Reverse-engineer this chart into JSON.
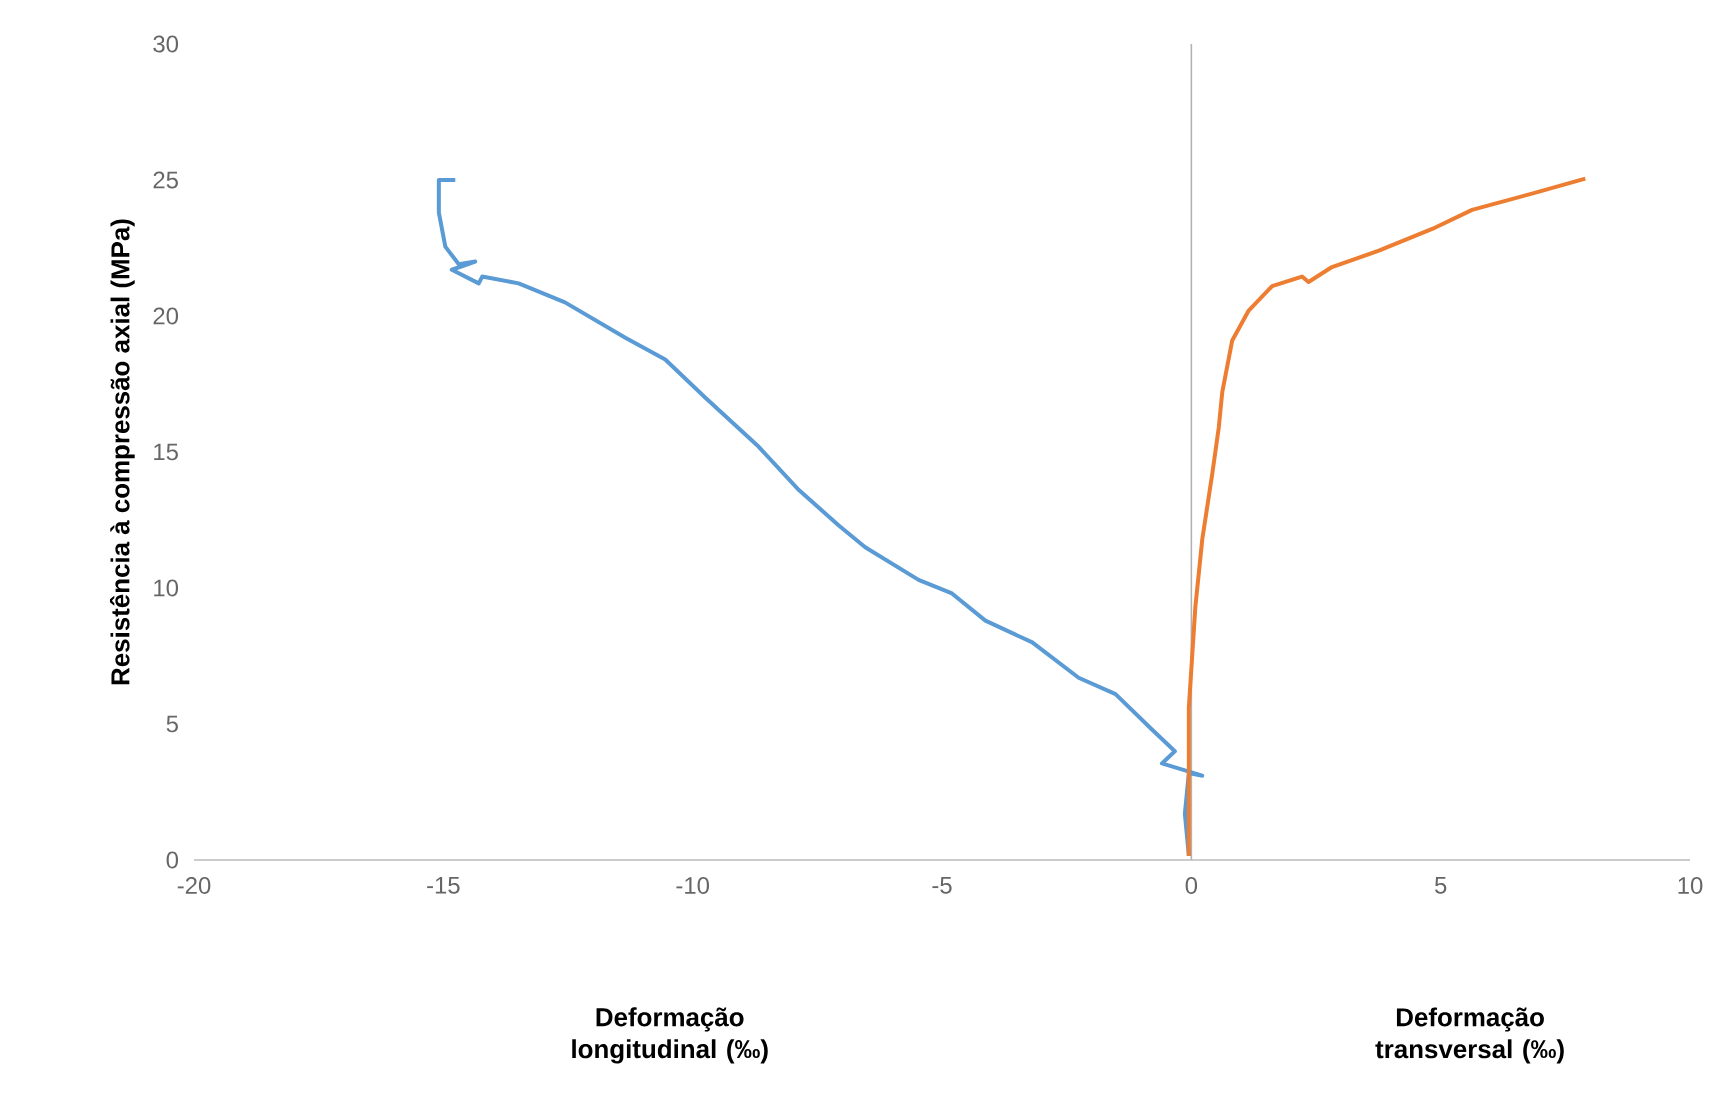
{
  "chart_data": {
    "type": "line",
    "ylabel": "Resistência à compressão axial (MPa)",
    "xlabel": "Deformação longitudinal (‰)",
    "annotations": [
      "Deformação transversal (‰)"
    ],
    "xlim": [
      -20,
      10
    ],
    "ylim": [
      0,
      30
    ],
    "xticks": [
      -20,
      -15,
      -10,
      -5,
      0,
      5,
      10
    ],
    "yticks": [
      0,
      5,
      10,
      15,
      20,
      25,
      30
    ],
    "series": [
      {
        "color": "#5b9bd5",
        "x": [
          -0.05,
          -0.13,
          -0.05,
          0.22,
          -0.59,
          -0.33,
          -0.79,
          -1.52,
          -2.26,
          -3.19,
          -4.13,
          -4.8,
          -5.47,
          -6.54,
          -7.07,
          -7.87,
          -8.68,
          -9.75,
          -10.55,
          -11.35,
          -12.56,
          -13.49,
          -14.22,
          -14.29,
          -14.83,
          -14.36,
          -14.69,
          -14.96,
          -15.09,
          -15.09,
          -14.76
        ],
        "values": [
          0.15,
          1.7,
          3.2,
          3.1,
          3.55,
          4.0,
          4.8,
          6.1,
          6.7,
          8.0,
          8.8,
          9.8,
          10.3,
          11.5,
          12.3,
          13.6,
          15.2,
          17.0,
          18.4,
          19.2,
          20.5,
          21.2,
          21.45,
          21.2,
          21.7,
          22.0,
          21.9,
          22.55,
          23.8,
          25.0,
          25.0
        ]
      },
      {
        "color": "#ed7d31",
        "x": [
          -0.05,
          -0.05,
          0.08,
          0.22,
          0.42,
          0.55,
          0.62,
          0.82,
          1.15,
          1.62,
          2.22,
          2.35,
          2.82,
          3.76,
          4.83,
          5.63,
          6.83,
          7.9
        ],
        "values": [
          0.15,
          5.6,
          9.3,
          11.8,
          14.2,
          15.9,
          17.2,
          19.1,
          20.2,
          21.1,
          21.45,
          21.25,
          21.8,
          22.4,
          23.2,
          23.9,
          24.5,
          25.05
        ]
      }
    ]
  }
}
